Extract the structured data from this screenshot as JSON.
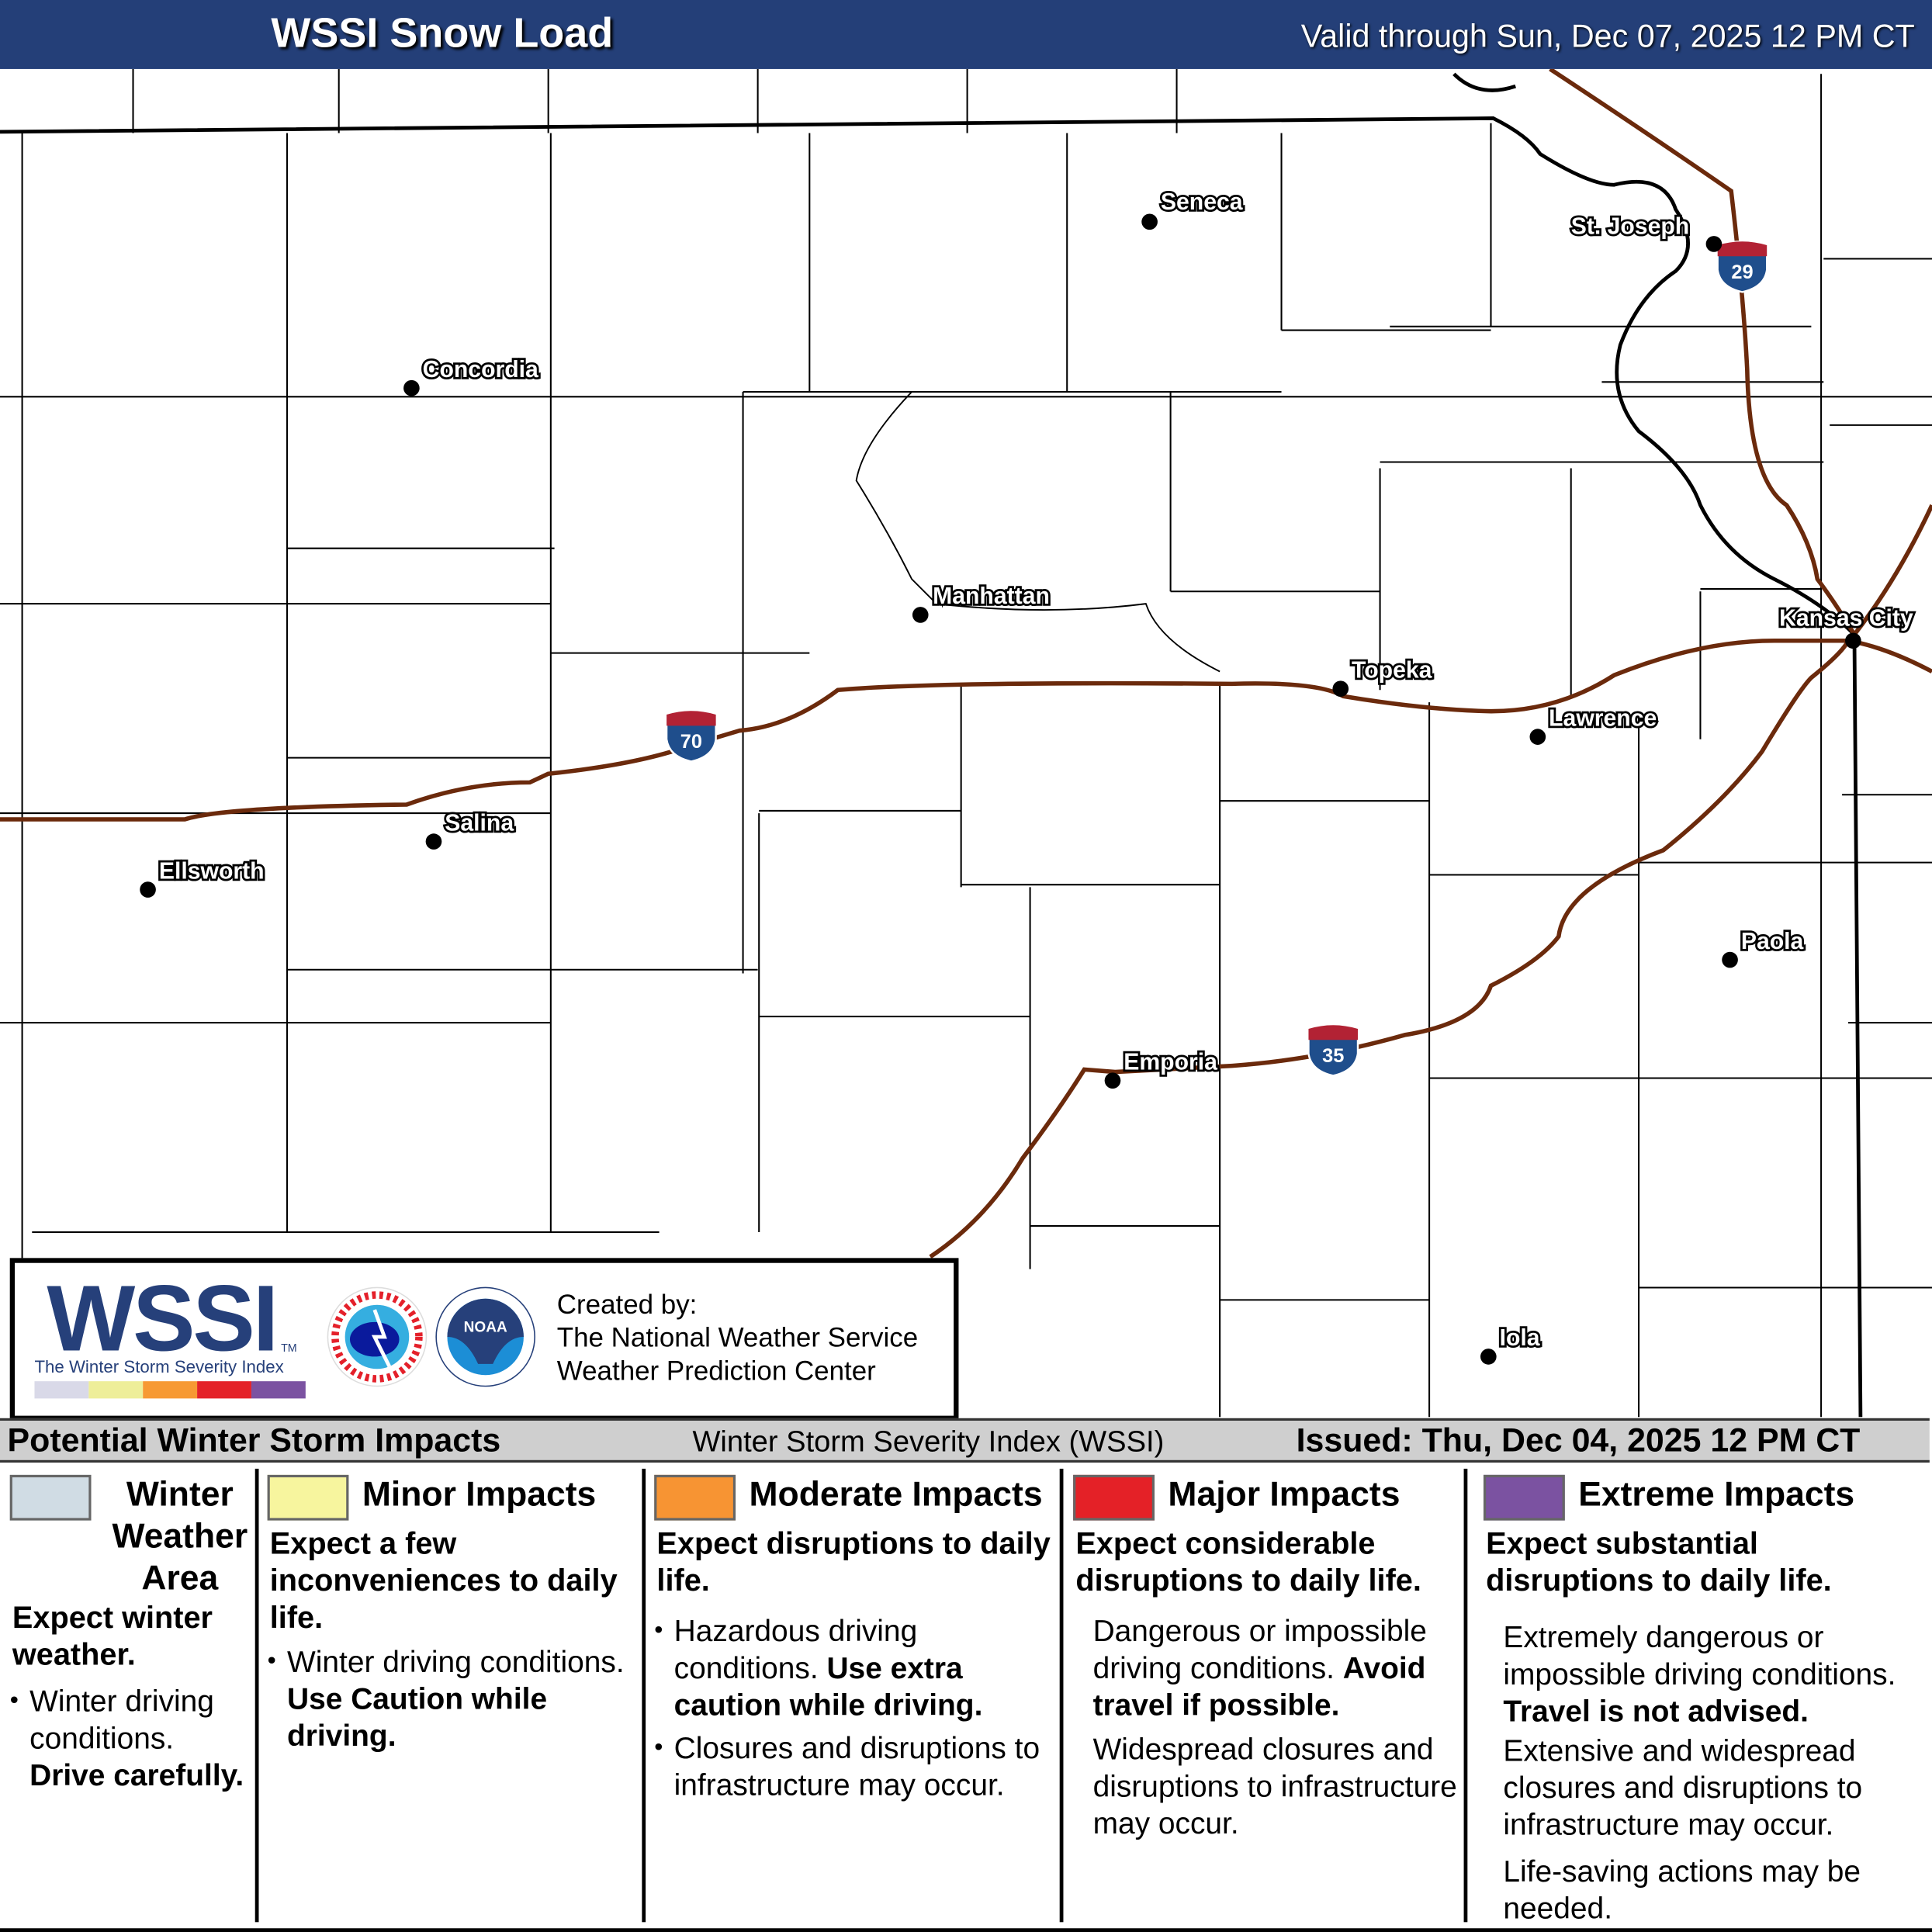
{
  "header": {
    "title": "WSSI Snow Load",
    "valid": "Valid through Sun, Dec 07, 2025 12 PM CT"
  },
  "map": {
    "cities": [
      "Seneca",
      "St. Joseph",
      "Concordia",
      "Manhattan",
      "Kansas City",
      "Topeka",
      "Lawrence",
      "Salina",
      "Ellsworth",
      "Paola",
      "Emporia",
      "Iola"
    ],
    "shields": [
      {
        "label": "29"
      },
      {
        "label": "70"
      },
      {
        "label": "35"
      }
    ],
    "colors": {
      "interstate": "#6b2a0c",
      "shield_top": "#b22234",
      "shield_body": "#1f4e8c",
      "county": "#000000"
    }
  },
  "logo": {
    "wordmark": "WSSI",
    "tm": "TM",
    "subtitle": "The Winter Storm Severity Index",
    "scale_colors": [
      "#d9d9e8",
      "#eeee99",
      "#f79933",
      "#e42228",
      "#7b52a1"
    ],
    "nws_ring_text": "NATIONAL WEATHER SERVICE",
    "noaa_text": "NOAA",
    "credit": [
      "Created by:",
      "The National Weather Service",
      "Weather Prediction Center"
    ]
  },
  "status_bar": {
    "left": "Potential Winter Storm Impacts",
    "center": "Winter Storm Severity Index (WSSI)",
    "issued": "Issued: Thu, Dec 04, 2025 12 PM CT"
  },
  "legend": [
    {
      "title": "Winter Weather Area",
      "color": "#d0dce4",
      "summary": "Expect winter weather.",
      "items": [
        {
          "text": "Winter driving conditions. ",
          "bold": "Drive carefully."
        }
      ]
    },
    {
      "title": "Minor Impacts",
      "color": "#f7f59e",
      "summary": "Expect a few inconveniences to daily life.",
      "items": [
        {
          "text": "Winter driving conditions. ",
          "bold": "Use Caution while driving."
        }
      ]
    },
    {
      "title": "Moderate Impacts",
      "color": "#f79433",
      "summary": "Expect disruptions to daily life.",
      "items": [
        {
          "text": "Hazardous driving conditions. ",
          "bold": "Use extra caution while driving."
        },
        {
          "text": "Closures and disruptions to infrastructure may occur.",
          "bold": ""
        }
      ]
    },
    {
      "title": "Major Impacts",
      "color": "#e42127",
      "summary": "Expect considerable disruptions to daily life.",
      "items": [
        {
          "text": "Dangerous or impossible driving conditions. ",
          "bold": "Avoid travel if possible."
        },
        {
          "text": "Widespread closures and disruptions to infrastructure may occur.",
          "bold": ""
        }
      ]
    },
    {
      "title": "Extreme Impacts",
      "color": "#7b52a1",
      "summary": "Expect substantial disruptions to daily life.",
      "items": [
        {
          "text": "Extremely dangerous or impossible driving conditions. ",
          "bold": "Travel is not advised."
        },
        {
          "text": "Extensive and widespread closures and disruptions to infrastructure may occur.",
          "bold": ""
        },
        {
          "text": "Life-saving actions may be needed.",
          "bold": ""
        }
      ]
    }
  ]
}
